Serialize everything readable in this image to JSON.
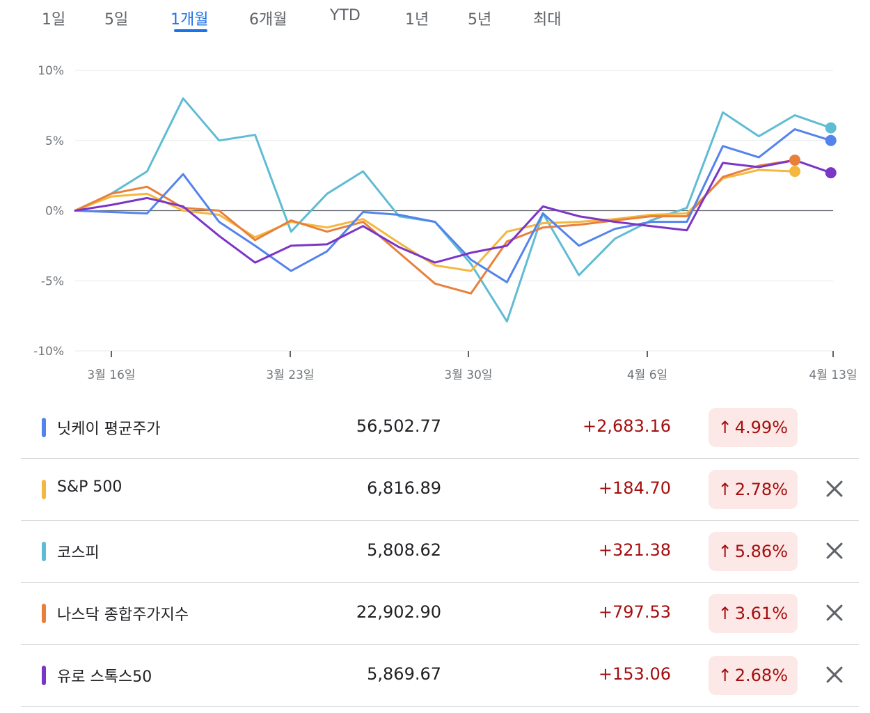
{
  "tabs": [
    {
      "label": "1일"
    },
    {
      "label": "5일"
    },
    {
      "label": "1개월",
      "active": true
    },
    {
      "label": "6개월"
    },
    {
      "label": "YTD"
    },
    {
      "label": "1년"
    },
    {
      "label": "5년"
    },
    {
      "label": "최대"
    }
  ],
  "chart_data": {
    "type": "line",
    "ylabels": [
      "10%",
      "5%",
      "0%",
      "-5%",
      "-10%"
    ],
    "ylim": [
      -10,
      10
    ],
    "xlabels": [
      "3월 16일",
      "3월 23일",
      "3월 30일",
      "4월 6일",
      "4월 13일"
    ],
    "baseline": 0,
    "series": [
      {
        "name": "닛케이 평균주가",
        "color": "#5383ec",
        "values": [
          0,
          -0.1,
          -0.2,
          2.6,
          -0.8,
          -2.5,
          -4.3,
          -2.9,
          -0.1,
          -0.3,
          -0.8,
          -3.5,
          -5.1,
          -0.2,
          -2.5,
          -1.3,
          -0.8,
          -0.8,
          4.6,
          3.8,
          5.8,
          5.0
        ],
        "end_dot": true
      },
      {
        "name": "S&P 500",
        "color": "#f4b73f",
        "values": [
          0,
          1.0,
          1.2,
          0,
          -0.3,
          -1.9,
          -0.8,
          -1.2,
          -0.6,
          -2.3,
          -3.9,
          -4.3,
          -1.5,
          -0.9,
          -0.8,
          -0.6,
          -0.3,
          -0.2,
          2.3,
          2.9,
          2.8
        ],
        "end_dot": true
      },
      {
        "name": "코스피",
        "color": "#5fbcd3",
        "values": [
          0,
          1.2,
          2.8,
          8.0,
          5.0,
          5.4,
          -1.5,
          1.2,
          2.8,
          -0.4,
          -0.8,
          -3.8,
          -7.9,
          -0.2,
          -4.6,
          -2.0,
          -0.7,
          0.2,
          7.0,
          5.3,
          6.8,
          5.9
        ],
        "end_dot": true
      },
      {
        "name": "나스닥 종합주가지수",
        "color": "#e8803b",
        "values": [
          0,
          1.2,
          1.7,
          0.2,
          0,
          -2.1,
          -0.7,
          -1.5,
          -0.8,
          -3.0,
          -5.2,
          -5.9,
          -2.2,
          -1.2,
          -1.0,
          -0.7,
          -0.4,
          -0.4,
          2.4,
          3.2,
          3.6
        ],
        "end_dot": true
      },
      {
        "name": "유로 스톡스50",
        "color": "#7b35c7",
        "values": [
          0,
          0.4,
          0.9,
          0.3,
          -1.8,
          -3.7,
          -2.5,
          -2.4,
          -1.1,
          -2.6,
          -3.7,
          -3.0,
          -2.5,
          0.3,
          -0.4,
          -0.8,
          -1.1,
          -1.4,
          3.4,
          3.1,
          3.6,
          2.7
        ],
        "end_dot": true
      }
    ]
  },
  "rows": [
    {
      "name": "닛케이 평균주가",
      "color": "#5383ec",
      "price": "56,502.77",
      "change": "+2,683.16",
      "pct": "4.99%",
      "arrow": "↑",
      "removable": false
    },
    {
      "name": "S&P 500",
      "color": "#f4b73f",
      "price": "6,816.89",
      "change": "+184.70",
      "pct": "2.78%",
      "arrow": "↑",
      "removable": true
    },
    {
      "name": "코스피",
      "color": "#5fbcd3",
      "price": "5,808.62",
      "change": "+321.38",
      "pct": "5.86%",
      "arrow": "↑",
      "removable": true
    },
    {
      "name": "나스닥 종합주가지수",
      "color": "#e8803b",
      "price": "22,902.90",
      "change": "+797.53",
      "pct": "3.61%",
      "arrow": "↑",
      "removable": true
    },
    {
      "name": "유로 스톡스50",
      "color": "#7b35c7",
      "price": "5,869.67",
      "change": "+153.06",
      "pct": "2.68%",
      "arrow": "↑",
      "removable": true
    }
  ]
}
